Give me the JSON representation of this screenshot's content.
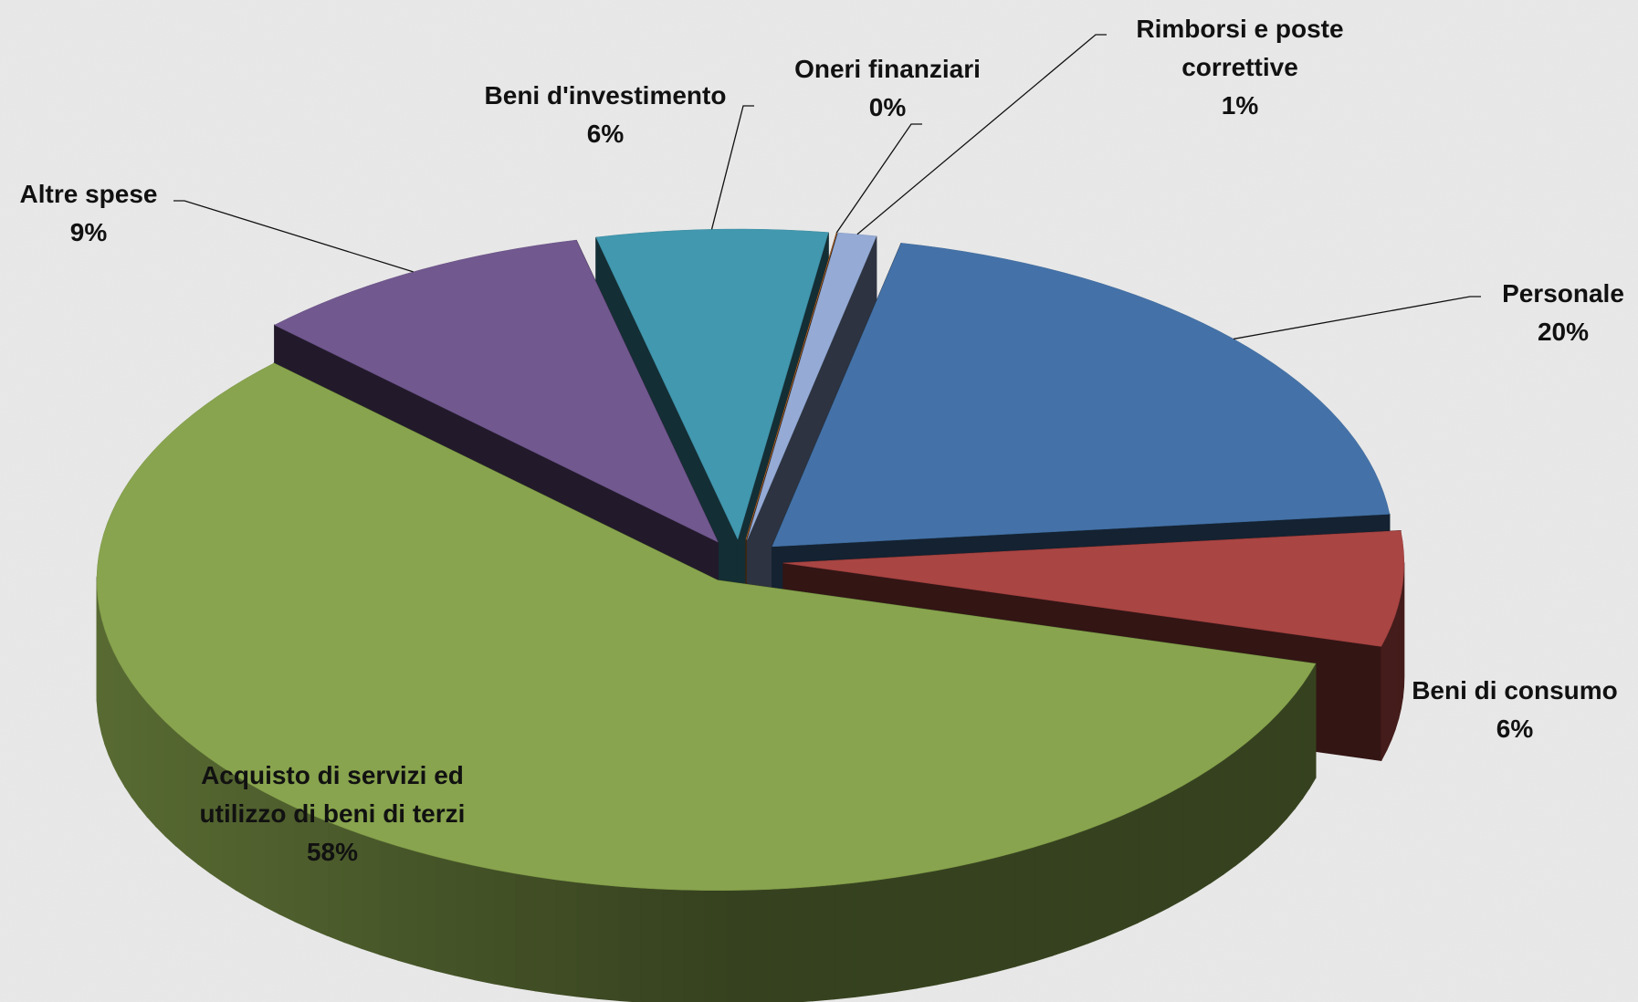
{
  "chart_data": {
    "type": "pie",
    "categories": [
      "Personale",
      "Beni di consumo",
      "Acquisto di servizi ed utilizzo di beni di terzi",
      "Altre spese",
      "Beni d'investimento",
      "Oneri finanziari",
      "Rimborsi e poste correttive"
    ],
    "values": [
      20,
      6,
      58,
      9,
      6,
      0,
      1
    ],
    "value_labels": [
      "20%",
      "6%",
      "58%",
      "9%",
      "6%",
      "0%",
      "1%"
    ],
    "colors": [
      "#4472a8",
      "#a94543",
      "#88a44e",
      "#71588f",
      "#4198af",
      "#d87a30",
      "#95abd6"
    ]
  }
}
